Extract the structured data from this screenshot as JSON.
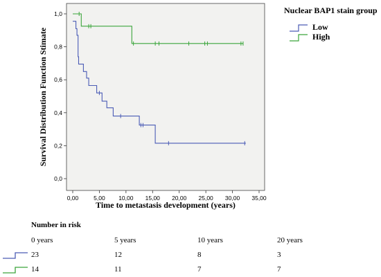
{
  "chart_data": {
    "type": "line",
    "title": "",
    "xlabel": "Time to metastasis development (years)",
    "ylabel": "Survival Distribution Function Stimate",
    "xlim": [
      0,
      35
    ],
    "ylim": [
      0,
      1
    ],
    "xticks": [
      "0,00",
      "5,00",
      "10,00",
      "15,00",
      "20,00",
      "25,00",
      "30,00",
      "35,00"
    ],
    "yticks": [
      "0,0",
      "0,2",
      "0,4",
      "0,6",
      "0,8",
      "1,0"
    ],
    "grid": false,
    "legend": {
      "title": "Nuclear BAP1 stain group",
      "placement": "right"
    },
    "series": [
      {
        "name": "Low",
        "color": "#4a5bb5",
        "steps": [
          [
            0.0,
            0.955
          ],
          [
            0.6,
            0.91
          ],
          [
            0.8,
            0.87
          ],
          [
            1.0,
            0.74
          ],
          [
            1.1,
            0.695
          ],
          [
            2.0,
            0.65
          ],
          [
            2.6,
            0.61
          ],
          [
            3.0,
            0.565
          ],
          [
            4.5,
            0.52
          ],
          [
            5.5,
            0.47
          ],
          [
            6.4,
            0.43
          ],
          [
            7.6,
            0.38
          ],
          [
            12.5,
            0.325
          ],
          [
            15.5,
            0.215
          ],
          [
            32.5,
            0.215
          ]
        ],
        "censored": [
          [
            5.0,
            0.52
          ],
          [
            9.0,
            0.38
          ],
          [
            12.8,
            0.325
          ],
          [
            13.2,
            0.325
          ],
          [
            18.0,
            0.215
          ],
          [
            32.3,
            0.215
          ]
        ]
      },
      {
        "name": "High",
        "color": "#3aa53a",
        "steps": [
          [
            0.0,
            1.0
          ],
          [
            1.6,
            0.925
          ],
          [
            11.1,
            0.82
          ],
          [
            32.0,
            0.82
          ]
        ],
        "censored": [
          [
            1.2,
            1.0
          ],
          [
            3.0,
            0.925
          ],
          [
            3.4,
            0.925
          ],
          [
            11.4,
            0.82
          ],
          [
            15.5,
            0.82
          ],
          [
            16.2,
            0.82
          ],
          [
            21.8,
            0.82
          ],
          [
            24.8,
            0.82
          ],
          [
            25.3,
            0.82
          ],
          [
            31.6,
            0.82
          ],
          [
            32.0,
            0.82
          ]
        ]
      }
    ]
  },
  "risk_table": {
    "title": "Number in risk",
    "headers": [
      "0 years",
      "5 years",
      "10 years",
      "20 years"
    ],
    "rows": [
      {
        "series": "Low",
        "color": "#4a5bb5",
        "values": [
          "23",
          "12",
          "8",
          "3"
        ]
      },
      {
        "series": "High",
        "color": "#3aa53a",
        "values": [
          "14",
          "11",
          "7",
          "7"
        ]
      }
    ]
  }
}
